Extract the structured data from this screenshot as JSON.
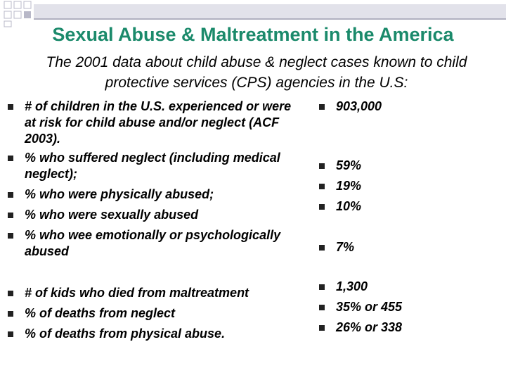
{
  "title": "Sexual Abuse & Maltreatment in the America",
  "subtitle": "The 2001 data about child abuse & neglect cases known to child protective services (CPS) agencies in the U.S:",
  "left_items": [
    "# of children in the U.S. experienced or were at risk for child abuse and/or neglect (ACF 2003).",
    "% who suffered neglect (including medical neglect);",
    "% who were physically abused;",
    "% who were sexually abused",
    "% who wee emotionally or psychologically abused",
    "# of kids who died from maltreatment",
    "% of deaths from neglect",
    "% of deaths from physical abuse."
  ],
  "right_items": [
    "903,000",
    "59%",
    "19%",
    "10%",
    "7%",
    "1,300",
    "35% or 455",
    "26% or 338"
  ]
}
